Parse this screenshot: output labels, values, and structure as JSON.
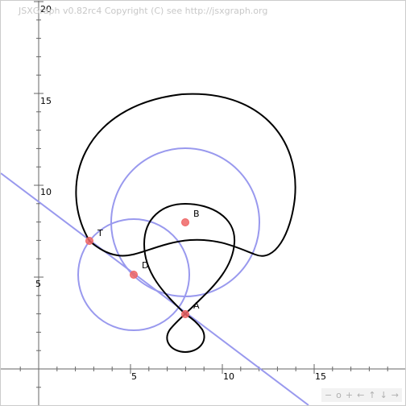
{
  "copyright": "JSXGraph v0.82rc4 Copyright (C) see http://jsxgraph.org",
  "x_axis": {
    "ticks": [
      "5",
      "10",
      "15"
    ]
  },
  "y_axis": {
    "ticks": [
      "5",
      "10",
      "15",
      "20"
    ]
  },
  "points": {
    "T": {
      "label": "T",
      "x": 2.78,
      "y": 6.98
    },
    "D": {
      "label": "D",
      "x": 5.1,
      "y": 5.1
    },
    "B": {
      "label": "B",
      "x": 7.9,
      "y": 8.0
    },
    "A": {
      "label": "A",
      "x": 7.9,
      "y": 3.0
    }
  },
  "navbar": [
    "−",
    "o",
    "+",
    "←",
    "↑",
    "↓",
    "→"
  ],
  "colors": {
    "point": "#ee6666",
    "circle": "#9999ee",
    "line": "#9999ee",
    "curve": "#000000",
    "axis": "#666666"
  }
}
